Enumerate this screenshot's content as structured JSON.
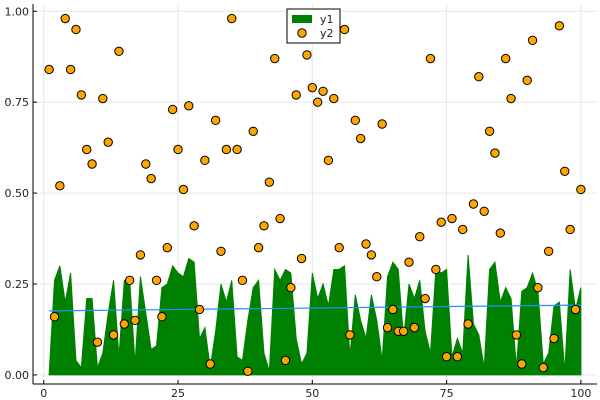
{
  "chart_data": {
    "type": "scatter",
    "title": "",
    "xlabel": "",
    "ylabel": "",
    "xlim": [
      -2,
      103
    ],
    "ylim": [
      -0.025,
      1.02
    ],
    "xticks": [
      0,
      25,
      50,
      75,
      100
    ],
    "yticks": [
      0.0,
      0.25,
      0.5,
      0.75,
      1.0
    ],
    "xtick_labels": [
      "0",
      "25",
      "50",
      "75",
      "100"
    ],
    "ytick_labels": [
      "0.00",
      "0.25",
      "0.50",
      "0.75",
      "1.00"
    ],
    "grid": true,
    "legend_position": "top-center",
    "colors": {
      "y1_fill": "#008000",
      "y1_line": "#008000",
      "y2_marker": "#FFA500",
      "trend_line": "#1E90FF"
    },
    "legend": [
      {
        "label": "y1",
        "kind": "area"
      },
      {
        "label": "y2",
        "kind": "marker"
      }
    ],
    "series": [
      {
        "name": "y1",
        "type": "area",
        "x": [
          1,
          2,
          3,
          4,
          5,
          6,
          7,
          8,
          9,
          10,
          11,
          12,
          13,
          14,
          15,
          16,
          17,
          18,
          19,
          20,
          21,
          22,
          23,
          24,
          25,
          26,
          27,
          28,
          29,
          30,
          31,
          32,
          33,
          34,
          35,
          36,
          37,
          38,
          39,
          40,
          41,
          42,
          43,
          44,
          45,
          46,
          47,
          48,
          49,
          50,
          51,
          52,
          53,
          54,
          55,
          56,
          57,
          58,
          59,
          60,
          61,
          62,
          63,
          64,
          65,
          66,
          67,
          68,
          69,
          70,
          71,
          72,
          73,
          74,
          75,
          76,
          77,
          78,
          79,
          80,
          81,
          82,
          83,
          84,
          85,
          86,
          87,
          88,
          89,
          90,
          91,
          92,
          93,
          94,
          95,
          96,
          97,
          98,
          99,
          100
        ],
        "y": [
          0.0,
          0.26,
          0.3,
          0.2,
          0.28,
          0.04,
          0.02,
          0.21,
          0.21,
          0.02,
          0.06,
          0.17,
          0.26,
          0.05,
          0.26,
          0.26,
          0.03,
          0.27,
          0.17,
          0.07,
          0.08,
          0.24,
          0.25,
          0.3,
          0.28,
          0.27,
          0.32,
          0.31,
          0.1,
          0.13,
          0.02,
          0.12,
          0.25,
          0.2,
          0.26,
          0.05,
          0.04,
          0.15,
          0.24,
          0.26,
          0.06,
          0.01,
          0.29,
          0.26,
          0.29,
          0.28,
          0.1,
          0.03,
          0.06,
          0.28,
          0.21,
          0.25,
          0.19,
          0.29,
          0.29,
          0.3,
          0.05,
          0.22,
          0.15,
          0.1,
          0.22,
          0.15,
          0.04,
          0.27,
          0.31,
          0.29,
          0.1,
          0.25,
          0.21,
          0.26,
          0.12,
          0.06,
          0.29,
          0.28,
          0.29,
          0.05,
          0.1,
          0.06,
          0.33,
          0.14,
          0.11,
          0.02,
          0.29,
          0.31,
          0.2,
          0.24,
          0.21,
          0.02,
          0.23,
          0.24,
          0.28,
          0.23,
          0.03,
          0.06,
          0.19,
          0.2,
          0.01,
          0.29,
          0.18,
          0.24
        ]
      },
      {
        "name": "y2",
        "type": "scatter",
        "x": [
          1,
          2,
          3,
          4,
          5,
          6,
          7,
          8,
          9,
          10,
          11,
          12,
          13,
          14,
          15,
          16,
          17,
          18,
          19,
          20,
          21,
          22,
          23,
          24,
          25,
          26,
          27,
          28,
          29,
          30,
          31,
          32,
          33,
          34,
          35,
          36,
          37,
          38,
          39,
          40,
          41,
          42,
          43,
          44,
          45,
          46,
          47,
          48,
          49,
          50,
          51,
          52,
          53,
          54,
          55,
          56,
          57,
          58,
          59,
          60,
          61,
          62,
          63,
          64,
          65,
          66,
          67,
          68,
          69,
          70,
          71,
          72,
          73,
          74,
          75,
          76,
          77,
          78,
          79,
          80,
          81,
          82,
          83,
          84,
          85,
          86,
          87,
          88,
          89,
          90,
          91,
          92,
          93,
          94,
          95,
          96,
          97,
          98,
          99,
          100
        ],
        "y": [
          0.84,
          0.16,
          0.52,
          0.98,
          0.84,
          0.95,
          0.77,
          0.62,
          0.58,
          0.09,
          0.76,
          0.64,
          0.11,
          0.89,
          0.14,
          0.26,
          0.15,
          0.33,
          0.58,
          0.54,
          0.26,
          0.16,
          0.35,
          0.73,
          0.62,
          0.51,
          0.74,
          0.41,
          0.18,
          0.59,
          0.03,
          0.7,
          0.34,
          0.62,
          0.98,
          0.62,
          0.26,
          0.01,
          0.67,
          0.35,
          0.41,
          0.53,
          0.87,
          0.43,
          0.04,
          0.24,
          0.77,
          0.32,
          0.88,
          0.79,
          0.75,
          0.78,
          0.59,
          0.76,
          0.35,
          0.95,
          0.11,
          0.7,
          0.65,
          0.36,
          0.33,
          0.27,
          0.69,
          0.13,
          0.18,
          0.12,
          0.12,
          0.31,
          0.13,
          0.38,
          0.21,
          0.87,
          0.29,
          0.42,
          0.05,
          0.43,
          0.05,
          0.4,
          0.14,
          0.47,
          0.82,
          0.45,
          0.67,
          0.61,
          0.39,
          0.87,
          0.76,
          0.11,
          0.03,
          0.81,
          0.92,
          0.24,
          0.02,
          0.34,
          0.1,
          0.96,
          0.56,
          0.4,
          0.18,
          0.51
        ]
      },
      {
        "name": "",
        "type": "line",
        "x": [
          1,
          100
        ],
        "y": [
          0.176,
          0.192
        ]
      }
    ]
  }
}
